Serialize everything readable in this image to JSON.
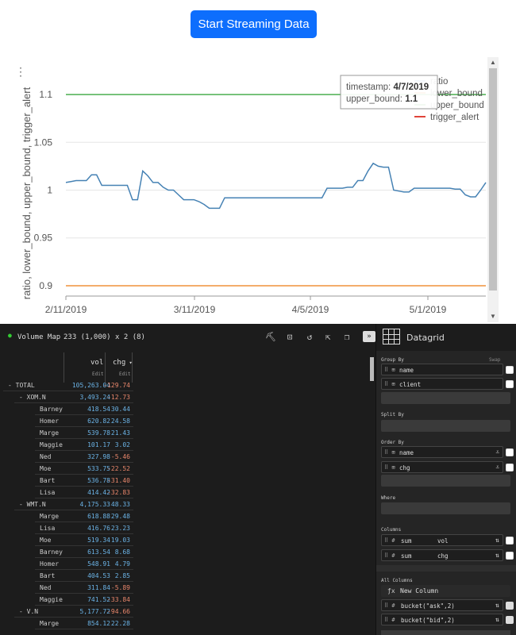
{
  "top": {
    "stream_button": "Start Streaming Data"
  },
  "chart_data": {
    "type": "line",
    "ylabel": "ratio, lower_bound, upper_bound, trigger_alert",
    "ylim": [
      0.89,
      1.12
    ],
    "y_ticks": [
      "1.1",
      "1.05",
      "1",
      "0.95",
      "0.9"
    ],
    "x_ticks": [
      "2/11/2019",
      "3/11/2019",
      "4/5/2019",
      "5/1/2019"
    ],
    "legend": [
      "ratio",
      "lower_bound",
      "upper_bound",
      "trigger_alert"
    ],
    "series": [
      {
        "name": "ratio",
        "color": "#4682b4",
        "values": [
          1.008,
          1.009,
          1.01,
          1.01,
          1.01,
          1.016,
          1.016,
          1.005,
          1.005,
          1.005,
          1.005,
          1.005,
          1.005,
          0.99,
          0.99,
          1.02,
          1.015,
          1.008,
          1.008,
          1.003,
          1.0,
          1.0,
          0.995,
          0.99,
          0.99,
          0.99,
          0.988,
          0.985,
          0.981,
          0.981,
          0.981,
          0.992,
          0.992,
          0.992,
          0.992,
          0.992,
          0.992,
          0.992,
          0.992,
          0.992,
          0.992,
          0.992,
          0.992,
          0.992,
          0.992,
          0.992,
          0.992,
          0.992,
          0.992,
          0.992,
          0.992,
          1.002,
          1.002,
          1.002,
          1.002,
          1.003,
          1.003,
          1.01,
          1.01,
          1.02,
          1.028,
          1.025,
          1.024,
          1.024,
          1.0,
          0.999,
          0.998,
          0.998,
          1.002,
          1.002,
          1.002,
          1.002,
          1.002,
          1.002,
          1.002,
          1.002,
          1.001,
          1.001,
          0.995,
          0.993,
          0.993,
          1.0,
          1.008
        ]
      },
      {
        "name": "lower_bound",
        "color": "#f0923a",
        "values": [
          0.9,
          0.9
        ]
      },
      {
        "name": "upper_bound",
        "color": "#4caf50",
        "values": [
          1.1,
          1.1
        ]
      },
      {
        "name": "trigger_alert",
        "color": "#e0443a",
        "values": []
      }
    ],
    "tooltip": {
      "timestamp_label": "timestamp:",
      "timestamp": "4/7/2019",
      "upper_label": "upper_bound:",
      "upper": "1.1"
    }
  },
  "grid": {
    "name": "Volume Map",
    "info": "233 (1,000) x 2 (8)",
    "columns": [
      {
        "name": "vol",
        "sub": "Edit"
      },
      {
        "name": "chg",
        "sub": "Edit"
      }
    ],
    "rows": [
      {
        "indent": 0,
        "toggle": "-",
        "label": "TOTAL",
        "vol": "105,263.04",
        "chg": "-129.74"
      },
      {
        "indent": 1,
        "toggle": "-",
        "label": "XOM.N",
        "vol": "3,493.24",
        "chg": "-12.73"
      },
      {
        "indent": 2,
        "toggle": "",
        "label": "Barney",
        "vol": "418.54",
        "chg": "30.44"
      },
      {
        "indent": 2,
        "toggle": "",
        "label": "Homer",
        "vol": "620.82",
        "chg": "24.58"
      },
      {
        "indent": 2,
        "toggle": "",
        "label": "Marge",
        "vol": "539.78",
        "chg": "21.43"
      },
      {
        "indent": 2,
        "toggle": "",
        "label": "Maggie",
        "vol": "101.17",
        "chg": "3.02"
      },
      {
        "indent": 2,
        "toggle": "",
        "label": "Ned",
        "vol": "327.98",
        "chg": "-5.46"
      },
      {
        "indent": 2,
        "toggle": "",
        "label": "Moe",
        "vol": "533.75",
        "chg": "-22.52"
      },
      {
        "indent": 2,
        "toggle": "",
        "label": "Bart",
        "vol": "536.78",
        "chg": "-31.40"
      },
      {
        "indent": 2,
        "toggle": "",
        "label": "Lisa",
        "vol": "414.42",
        "chg": "-32.83"
      },
      {
        "indent": 1,
        "toggle": "-",
        "label": "WMT.N",
        "vol": "4,175.33",
        "chg": "48.33"
      },
      {
        "indent": 2,
        "toggle": "",
        "label": "Marge",
        "vol": "618.88",
        "chg": "29.48"
      },
      {
        "indent": 2,
        "toggle": "",
        "label": "Lisa",
        "vol": "416.76",
        "chg": "23.23"
      },
      {
        "indent": 2,
        "toggle": "",
        "label": "Moe",
        "vol": "519.34",
        "chg": "19.03"
      },
      {
        "indent": 2,
        "toggle": "",
        "label": "Barney",
        "vol": "613.54",
        "chg": "8.68"
      },
      {
        "indent": 2,
        "toggle": "",
        "label": "Homer",
        "vol": "548.91",
        "chg": "4.79"
      },
      {
        "indent": 2,
        "toggle": "",
        "label": "Bart",
        "vol": "404.53",
        "chg": "2.85"
      },
      {
        "indent": 2,
        "toggle": "",
        "label": "Ned",
        "vol": "311.84",
        "chg": "-5.89"
      },
      {
        "indent": 2,
        "toggle": "",
        "label": "Maggie",
        "vol": "741.52",
        "chg": "-33.84"
      },
      {
        "indent": 1,
        "toggle": "-",
        "label": "V.N",
        "vol": "5,177.72",
        "chg": "-94.66"
      },
      {
        "indent": 2,
        "toggle": "",
        "label": "Marge",
        "vol": "854.12",
        "chg": "22.28"
      }
    ]
  },
  "side": {
    "title": "Datagrid",
    "group_by": "Group By",
    "swap": "Swap",
    "group_items": [
      "name",
      "client"
    ],
    "split_by": "Split By",
    "order_by": "Order By",
    "order_items": [
      "name",
      "chg"
    ],
    "where": "Where",
    "columns_label": "Columns",
    "columns": [
      {
        "agg": "sum",
        "name": "vol"
      },
      {
        "agg": "sum",
        "name": "chg"
      }
    ],
    "all_columns": "All Columns",
    "new_column": "New Column",
    "extra": [
      {
        "name": "bucket(\"ask\",2)"
      },
      {
        "name": "bucket(\"bid\",2)"
      }
    ]
  }
}
